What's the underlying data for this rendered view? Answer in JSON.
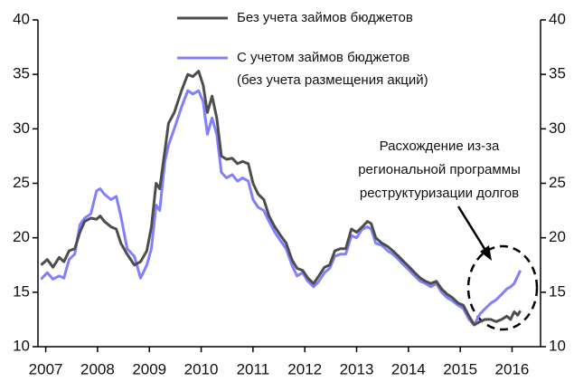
{
  "chart_data": {
    "type": "line",
    "x": [
      2006.91,
      2007.03,
      2007.14,
      2007.26,
      2007.35,
      2007.45,
      2007.56,
      2007.66,
      2007.75,
      2007.87,
      2007.98,
      2008.05,
      2008.13,
      2008.26,
      2008.36,
      2008.45,
      2008.57,
      2008.71,
      2008.83,
      2008.95,
      2009.04,
      2009.13,
      2009.2,
      2009.3,
      2009.37,
      2009.48,
      2009.62,
      2009.74,
      2009.84,
      2009.95,
      2010.04,
      2010.12,
      2010.21,
      2010.3,
      2010.39,
      2010.49,
      2010.6,
      2010.7,
      2010.8,
      2010.91,
      2011,
      2011.1,
      2011.21,
      2011.31,
      2011.42,
      2011.52,
      2011.64,
      2011.75,
      2011.85,
      2011.96,
      2012.06,
      2012.17,
      2012.27,
      2012.38,
      2012.48,
      2012.58,
      2012.69,
      2012.79,
      2012.9,
      2013,
      2013.11,
      2013.21,
      2013.28,
      2013.37,
      2013.49,
      2013.6,
      2013.7,
      2013.81,
      2013.91,
      2014.02,
      2014.12,
      2014.23,
      2014.33,
      2014.43,
      2014.54,
      2014.64,
      2014.75,
      2014.85,
      2014.96,
      2015.06,
      2015.17,
      2015.27,
      2015.38,
      2015.48,
      2015.59,
      2015.69,
      2015.8,
      2015.9,
      2015.97,
      2016.04,
      2016.11,
      2016.16
    ],
    "series": [
      {
        "name": "Без учета займов бюджетов",
        "color": "#4d4d4d",
        "values": [
          17.5,
          18,
          17.3,
          18.2,
          17.8,
          18.8,
          19,
          20.5,
          21.5,
          21.8,
          21.7,
          22,
          21.5,
          21,
          20.8,
          19.5,
          18.5,
          17.5,
          17.8,
          18.8,
          21,
          25,
          24.5,
          28,
          30.5,
          31.5,
          33.5,
          35,
          34.8,
          35.3,
          34,
          31.5,
          33,
          31,
          27.5,
          27.2,
          27.3,
          26.8,
          27,
          26.8,
          25,
          24,
          23.5,
          22,
          21,
          20.3,
          19.5,
          18,
          17.2,
          17,
          16.3,
          15.8,
          16.5,
          17.3,
          17.5,
          18.8,
          19,
          19,
          20.8,
          20.5,
          21,
          21.5,
          21.3,
          20,
          19.5,
          19.2,
          18.8,
          18.3,
          17.8,
          17.3,
          16.8,
          16.3,
          16,
          15.8,
          16,
          15.3,
          14.8,
          14.5,
          14,
          13.8,
          12.8,
          12,
          12.3,
          12.5,
          12.5,
          12.3,
          12.5,
          12.8,
          12.5,
          13.2,
          12.9,
          13.3
        ]
      },
      {
        "name": [
          "С учетом займов бюджетов",
          "(без учета размещения акций)"
        ],
        "color": "#8080ff",
        "values": [
          16.2,
          16.8,
          16.2,
          16.5,
          16.3,
          18,
          18.5,
          21.2,
          21.8,
          22.2,
          24.3,
          24.5,
          24,
          23.5,
          23.8,
          22,
          19,
          18.3,
          16.3,
          17.5,
          19,
          23,
          22.5,
          27,
          28.5,
          30,
          32,
          33.5,
          33.2,
          33.5,
          32.5,
          29.5,
          31,
          29.5,
          26,
          25.5,
          25.8,
          25.2,
          25.5,
          25.2,
          23.5,
          22.8,
          22.5,
          21.5,
          20.5,
          19.8,
          19,
          17.5,
          16.5,
          16.8,
          16,
          15.5,
          16,
          16.8,
          17.2,
          18.3,
          18.5,
          18.5,
          20.2,
          20,
          20.8,
          21,
          20.8,
          19.5,
          19.3,
          18.8,
          18.5,
          18,
          17.5,
          17,
          16.5,
          16,
          15.8,
          15.5,
          15.8,
          15,
          14.5,
          14.2,
          13.8,
          13.5,
          12.5,
          12,
          13,
          13.5,
          14,
          14.3,
          14.8,
          15.3,
          15.5,
          15.8,
          16.5,
          17
        ]
      }
    ],
    "xlim": [
      2006.85,
      2016.55
    ],
    "xticks": [
      2007,
      2008,
      2009,
      2010,
      2011,
      2012,
      2013,
      2014,
      2015,
      2016
    ],
    "ylim": [
      10,
      40
    ],
    "yticks": [
      10,
      15,
      20,
      25,
      30,
      35,
      40
    ],
    "y2lim": [
      10,
      40
    ],
    "y2ticks": [
      10,
      15,
      20,
      25,
      30,
      35,
      40
    ],
    "grid": false,
    "annotation": [
      "Расхождение из-за",
      "региональной программы",
      "реструктуризации долгов"
    ]
  }
}
